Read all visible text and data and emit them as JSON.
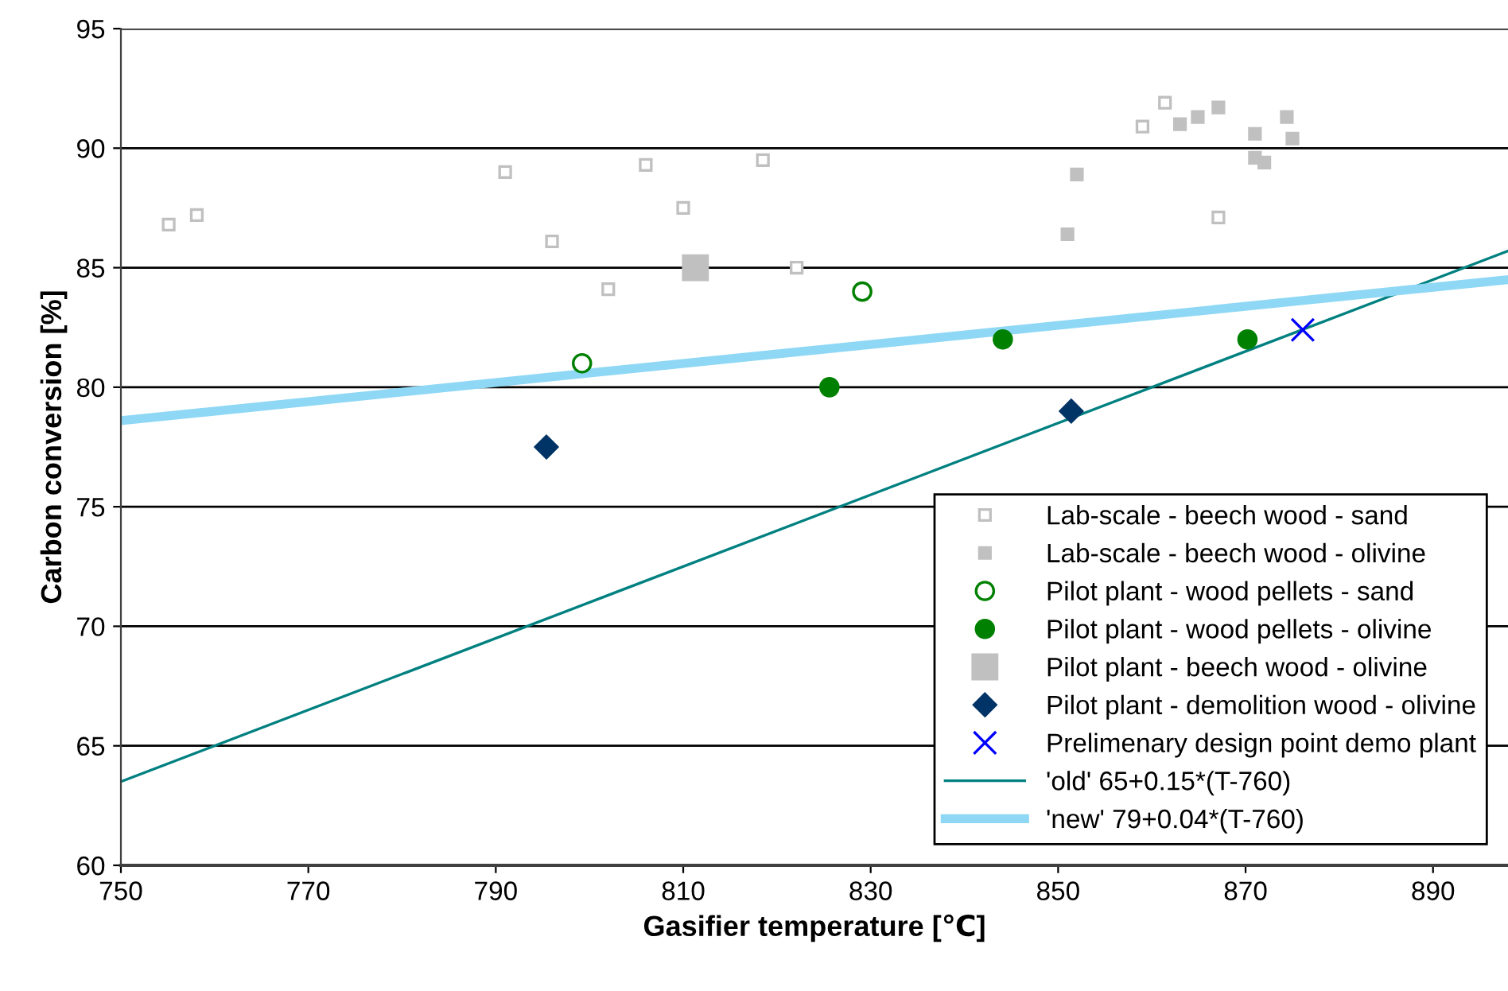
{
  "chart_data": {
    "type": "scatter",
    "xlabel": "Gasifier temperature [℃]",
    "ylabel": "Carbon conversion [%]",
    "xlim": [
      750,
      898
    ],
    "xticks": [
      750,
      770,
      790,
      810,
      830,
      850,
      870,
      890
    ],
    "ylim": [
      60,
      95
    ],
    "yticks": [
      60,
      65,
      70,
      75,
      80,
      85,
      90,
      95
    ],
    "grid": "y",
    "legend": "bottom right",
    "series": [
      {
        "name": "Lab-scale - beech wood - sand",
        "color": "#c0c0c0",
        "marker": "square",
        "x": [
          755.1,
          758.1,
          791.0,
          796.0,
          802.0,
          806.0,
          810.0,
          818.5,
          822.1,
          859.0,
          861.4,
          867.1
        ],
        "values": [
          86.8,
          87.2,
          89.0,
          86.1,
          84.1,
          89.3,
          87.5,
          89.5,
          85.0,
          90.9,
          91.9,
          87.1
        ]
      },
      {
        "name": "Lab-scale - beech wood - olivine",
        "color": "#c0c0c0",
        "marker": "square",
        "x": [
          851.0,
          852.0,
          863.0,
          864.9,
          867.1,
          871.0,
          871.0,
          872.0,
          874.4,
          875.0
        ],
        "values": [
          86.4,
          88.9,
          91.0,
          91.3,
          91.7,
          90.6,
          89.6,
          89.4,
          91.3,
          90.4
        ]
      },
      {
        "name": "Pilot plant - wood pellets - sand",
        "color": "#008000",
        "marker": "circle",
        "x": [
          799.2,
          829.1
        ],
        "values": [
          81.0,
          84.0
        ]
      },
      {
        "name": "Pilot plant - wood pellets - olivine",
        "color": "#008000",
        "marker": "circle",
        "x": [
          825.6,
          844.1,
          870.2
        ],
        "values": [
          80.0,
          82.0,
          82.0
        ]
      },
      {
        "name": "Pilot plant - beech wood - olivine",
        "color": "#c0c0c0",
        "marker": "square",
        "x": [
          811.3
        ],
        "values": [
          85.0
        ]
      },
      {
        "name": "Pilot plant - demolition wood - olivine",
        "color": "#003366",
        "marker": "diamond",
        "x": [
          795.4,
          851.4
        ],
        "values": [
          77.5,
          79.0
        ]
      },
      {
        "name": "Prelimenary design point demo plant",
        "color": "#0000ff",
        "marker": "cross",
        "x": [
          876.1
        ],
        "values": [
          82.4
        ]
      },
      {
        "name": "'old' 65+0.15*(T-760)",
        "type": "line",
        "color": "#008080",
        "x": [
          750,
          898
        ],
        "values": [
          63.5,
          85.7
        ]
      },
      {
        "name": "'new' 79+0.04*(T-760)",
        "type": "line",
        "color": "#8fd8f5",
        "x": [
          750,
          898
        ],
        "values": [
          78.6,
          84.5
        ]
      }
    ]
  }
}
